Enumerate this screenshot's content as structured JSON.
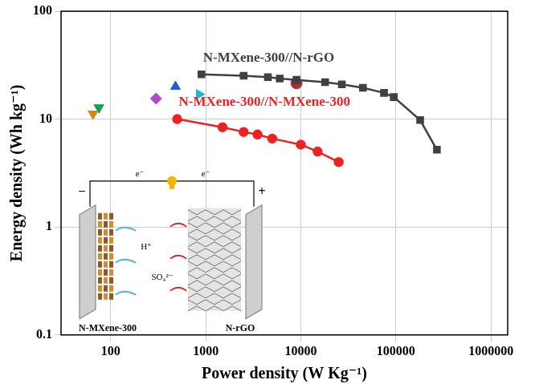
{
  "chart_data": {
    "type": "line",
    "x_label": "Power density (W Kg⁻¹)",
    "y_label": "Energy density (Wh kg⁻¹)",
    "log": true,
    "grid": true,
    "xlim": [
      30,
      1500000
    ],
    "xticks": [
      100,
      1000,
      10000,
      100000,
      1000000
    ],
    "ylim": [
      0.1,
      100
    ],
    "yticks": [
      0.1,
      1,
      10,
      100
    ],
    "series": [
      {
        "name": "N-MXene-300//N-rGO",
        "type": "line",
        "color": "#404040",
        "marker": "square",
        "line_style": "solid",
        "x": [
          900,
          2500,
          4500,
          6000,
          9000,
          18000,
          27000,
          45000,
          75000,
          95000,
          180000,
          270000
        ],
        "values": [
          26,
          25.2,
          24.5,
          23.8,
          23.1,
          22,
          21,
          19.5,
          17.5,
          16,
          9.8,
          5.2
        ]
      },
      {
        "name": "N-MXene-300//N-MXene-300",
        "type": "line",
        "color": "#ee2222",
        "marker": "circle",
        "line_style": "solid",
        "x": [
          500,
          1500,
          2500,
          3500,
          5000,
          10000,
          15000,
          25000
        ],
        "values": [
          10,
          8.4,
          7.6,
          7.2,
          6.6,
          5.8,
          5,
          4
        ]
      },
      {
        "type": "scatter",
        "color": "#d08a1c",
        "marker": "triangle-down",
        "x": [
          65
        ],
        "values": [
          11.2
        ]
      },
      {
        "type": "scatter",
        "color": "#13a05a",
        "marker": "triangle-down",
        "x": [
          75
        ],
        "values": [
          12.8
        ]
      },
      {
        "type": "scatter",
        "color": "#b04cc8",
        "marker": "diamond",
        "x": [
          300
        ],
        "values": [
          15.5
        ]
      },
      {
        "type": "scatter",
        "color": "#1f5fd0",
        "marker": "triangle",
        "x": [
          480
        ],
        "values": [
          20
        ]
      },
      {
        "type": "scatter",
        "color": "#22b5d5",
        "marker": "triangle-right",
        "x": [
          850
        ],
        "values": [
          17
        ]
      },
      {
        "type": "scatter",
        "color": "#a3322e",
        "marker": "circle",
        "x": [
          9000
        ],
        "values": [
          21.5
        ]
      }
    ],
    "annotations": [
      "−",
      "+",
      "e⁻",
      "e⁻",
      "H⁺",
      "SO₄²⁻",
      "N-MXene-300",
      "N-rGO"
    ]
  }
}
